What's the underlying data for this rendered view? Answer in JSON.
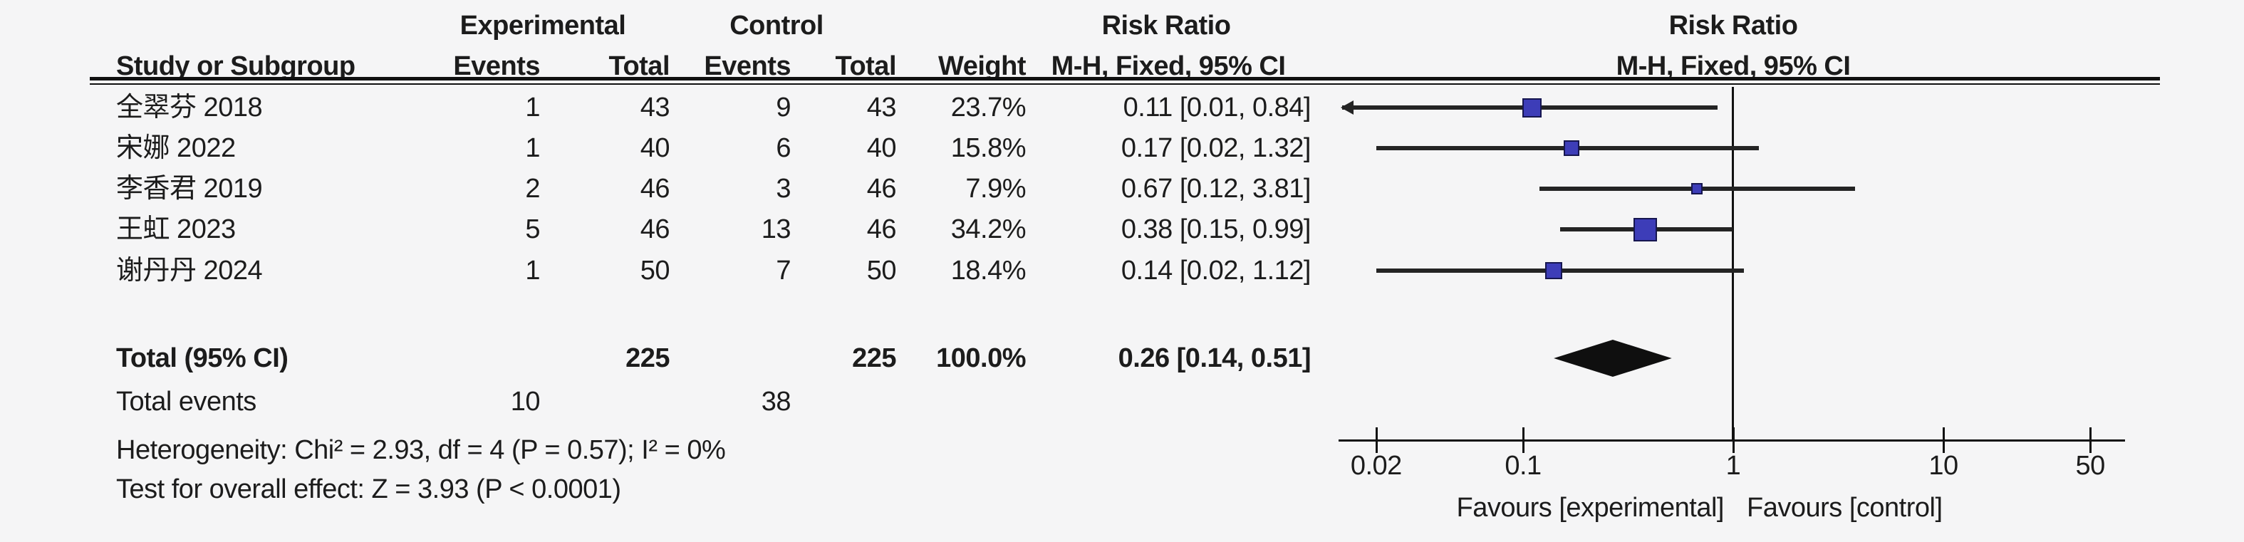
{
  "table": {
    "group_headers": {
      "experimental": "Experimental",
      "control": "Control",
      "risk_ratio_left": "Risk Ratio",
      "risk_ratio_right": "Risk Ratio"
    },
    "column_headers": {
      "study": "Study or Subgroup",
      "events_exp": "Events",
      "total_exp": "Total",
      "events_ctl": "Events",
      "total_ctl": "Total",
      "weight": "Weight",
      "ci": "M-H, Fixed, 95% CI",
      "ci_plot": "M-H, Fixed, 95% CI"
    },
    "rows": [
      {
        "study": "全翠芬 2018",
        "e_events": "1",
        "e_total": "43",
        "c_events": "9",
        "c_total": "43",
        "weight": "23.7%",
        "ci": "0.11 [0.01, 0.84]"
      },
      {
        "study": "宋娜 2022",
        "e_events": "1",
        "e_total": "40",
        "c_events": "6",
        "c_total": "40",
        "weight": "15.8%",
        "ci": "0.17 [0.02, 1.32]"
      },
      {
        "study": "李香君 2019",
        "e_events": "2",
        "e_total": "46",
        "c_events": "3",
        "c_total": "46",
        "weight": "7.9%",
        "ci": "0.67 [0.12, 3.81]"
      },
      {
        "study": "王虹 2023",
        "e_events": "5",
        "e_total": "46",
        "c_events": "13",
        "c_total": "46",
        "weight": "34.2%",
        "ci": "0.38 [0.15, 0.99]"
      },
      {
        "study": "谢丹丹 2024",
        "e_events": "1",
        "e_total": "50",
        "c_events": "7",
        "c_total": "50",
        "weight": "18.4%",
        "ci": "0.14 [0.02, 1.12]"
      }
    ],
    "total_row": {
      "label": "Total (95% CI)",
      "e_total": "225",
      "c_total": "225",
      "weight": "100.0%",
      "ci": "0.26 [0.14, 0.51]"
    },
    "total_events": {
      "label": "Total events",
      "e_events": "10",
      "c_events": "38"
    },
    "heterogeneity": "Heterogeneity: Chi² = 2.93, df = 4 (P = 0.57); I² = 0%",
    "overall_effect": "Test for overall effect: Z = 3.93 (P < 0.0001)"
  },
  "chart_data": {
    "type": "forest",
    "effect_measure": "Risk Ratio, M-H, Fixed, 95% CI",
    "x_scale": "log",
    "xlim": [
      0.02,
      50
    ],
    "axis_ticks": [
      "0.02",
      "0.1",
      "1",
      "10",
      "50"
    ],
    "null_line": 1,
    "studies": [
      {
        "name": "全翠芬 2018",
        "rr": 0.11,
        "ci_low": 0.01,
        "ci_high": 0.84,
        "weight_pct": 23.7
      },
      {
        "name": "宋娜 2022",
        "rr": 0.17,
        "ci_low": 0.02,
        "ci_high": 1.32,
        "weight_pct": 15.8
      },
      {
        "name": "李香君 2019",
        "rr": 0.67,
        "ci_low": 0.12,
        "ci_high": 3.81,
        "weight_pct": 7.9
      },
      {
        "name": "王虹 2023",
        "rr": 0.38,
        "ci_low": 0.15,
        "ci_high": 0.99,
        "weight_pct": 34.2
      },
      {
        "name": "谢丹丹 2024",
        "rr": 0.14,
        "ci_low": 0.02,
        "ci_high": 1.12,
        "weight_pct": 18.4
      }
    ],
    "overall": {
      "label": "Total (95% CI)",
      "rr": 0.26,
      "ci_low": 0.14,
      "ci_high": 0.51
    },
    "footer_left": "Favours [experimental]",
    "footer_right": "Favours [control]",
    "marker_color": "#3D3DB8",
    "line_color": "#242424",
    "diamond_color": "#0f0f0f",
    "background_color": "#f5f5f6"
  }
}
